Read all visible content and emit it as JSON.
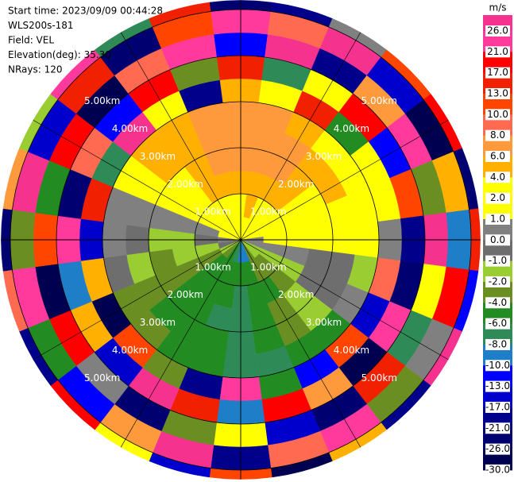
{
  "chart_data": {
    "type": "ppi",
    "header": [
      "Start time: 2023/09/09 00:44:28",
      "WLS200s-181",
      "Field: VEL",
      "Elevation(deg): 35.30",
      "NRays: 120"
    ],
    "rings": [
      {
        "value": 1,
        "label": "1.00km"
      },
      {
        "value": 2,
        "label": "2.00km"
      },
      {
        "value": 3,
        "label": "3.00km"
      },
      {
        "value": 4,
        "label": "4.00km"
      },
      {
        "value": 5,
        "label": "5.00km"
      }
    ],
    "ranges": [
      0,
      0.5,
      1,
      1.5,
      2,
      2.5,
      3,
      3.5,
      4,
      4.5,
      5,
      5.2
    ],
    "azimuths": [
      0,
      15,
      30,
      45,
      60,
      75,
      90,
      105,
      120,
      135,
      150,
      165,
      180,
      195,
      210,
      225,
      240,
      255,
      270,
      285,
      300,
      315,
      330,
      345
    ],
    "gates": [
      [
        1.5,
        3,
        5,
        6.5,
        7,
        7,
        5,
        15,
        -13,
        22,
        -26
      ],
      [
        1.5,
        4,
        5,
        6.5,
        7,
        7,
        3,
        -8,
        27,
        9,
        -21
      ],
      [
        1.5,
        3,
        5,
        6,
        7,
        5,
        13,
        2,
        -18,
        30,
        0.5
      ],
      [
        1.5,
        3,
        5,
        5,
        5,
        3,
        -5,
        20,
        7,
        -15,
        11
      ],
      [
        1.5,
        3,
        3,
        3,
        5,
        3,
        1.5,
        -11,
        24,
        -28,
        18
      ],
      [
        1.5,
        2,
        3,
        3,
        3,
        2.5,
        1.5,
        12,
        -3,
        5,
        -24
      ],
      [
        0.5,
        1.5,
        1.5,
        3,
        3,
        2,
        0.5,
        -19,
        28,
        -9,
        14
      ],
      [
        0.5,
        0.5,
        0.5,
        -0.5,
        -0.5,
        -1.5,
        9,
        -22,
        3,
        19,
        -12
      ],
      [
        -1.5,
        -1.5,
        -1.5,
        -0.5,
        -0.5,
        0.5,
        -16,
        25,
        -7,
        0.5,
        27
      ],
      [
        -1.5,
        -3,
        -3,
        -1.5,
        -1.5,
        -5,
        11,
        -27,
        16,
        -3,
        -18
      ],
      [
        -3,
        -3,
        -5,
        -3,
        -3,
        -5,
        -12,
        6,
        -25,
        21,
        4
      ],
      [
        -9,
        -5,
        -5,
        -5,
        -5,
        -7,
        -5,
        18,
        -14,
        8,
        -29
      ],
      [
        -9,
        -5,
        -7,
        -7,
        -7,
        -7,
        23,
        -10,
        2.5,
        -20,
        12
      ],
      [
        -7,
        -5,
        -5,
        -7,
        -5,
        -5,
        -20,
        14,
        -4,
        26,
        -15
      ],
      [
        -5,
        -5,
        -5,
        -5,
        -5,
        -5,
        -3,
        29,
        -23,
        7,
        3
      ],
      [
        -3,
        -5,
        -5,
        -5,
        -5,
        -3,
        10,
        -16,
        0.5,
        -11,
        20
      ],
      [
        -1.5,
        -3,
        -3,
        -3,
        -3,
        -3,
        -27,
        4,
        17,
        -6,
        -19
      ],
      [
        -0.5,
        -1.5,
        -1.5,
        -3,
        -1.5,
        -0.5,
        5,
        -9,
        -28,
        25,
        9
      ],
      [
        0.5,
        -0.5,
        -1.5,
        -1.5,
        -0.5,
        0.5,
        -14,
        21,
        12,
        -2.5,
        -23
      ],
      [
        1.5,
        0.5,
        0.5,
        0.5,
        0.5,
        0.5,
        16,
        -26,
        -5,
        28,
        6
      ],
      [
        1.5,
        3,
        3,
        3,
        3,
        3,
        -7,
        9,
        19,
        -17,
        -1.5
      ],
      [
        1.5,
        3,
        3,
        3,
        5,
        5,
        27,
        -12,
        -30,
        13,
        24
      ],
      [
        1.5,
        3,
        5,
        5,
        5,
        5,
        2.5,
        17,
        8,
        -22,
        -8
      ],
      [
        1.5,
        3,
        5,
        7,
        7,
        7,
        -18,
        -4,
        22,
        11,
        15
      ]
    ],
    "colorbar": {
      "title": "m/s",
      "ticks": [
        {
          "value": 26,
          "label": "26.0"
        },
        {
          "value": 21,
          "label": "21.0"
        },
        {
          "value": 17,
          "label": "17.0"
        },
        {
          "value": 13,
          "label": "13.0"
        },
        {
          "value": 10,
          "label": "10.0"
        },
        {
          "value": 8,
          "label": "8.0"
        },
        {
          "value": 6,
          "label": "6.0"
        },
        {
          "value": 4,
          "label": "4.0"
        },
        {
          "value": 2,
          "label": "2.0"
        },
        {
          "value": 1,
          "label": "1.0"
        },
        {
          "value": 0,
          "label": "0.0"
        },
        {
          "value": -1,
          "label": "-1.0"
        },
        {
          "value": -2,
          "label": "-2.0"
        },
        {
          "value": -4,
          "label": "-4.0"
        },
        {
          "value": -6,
          "label": "-6.0"
        },
        {
          "value": -8,
          "label": "-8.0"
        },
        {
          "value": -10,
          "label": "-10.0"
        },
        {
          "value": -13,
          "label": "-13.0"
        },
        {
          "value": -17,
          "label": "-17.0"
        },
        {
          "value": -21,
          "label": "-21.0"
        },
        {
          "value": -26,
          "label": "-26.0"
        },
        {
          "value": -30,
          "label": "-30.0"
        }
      ],
      "colors": [
        "#f5338f",
        "#ff3a9c",
        "#ff0000",
        "#f02000",
        "#ff4500",
        "#ff6a50",
        "#ff9a3c",
        "#ffb000",
        "#ffff00",
        "#ffff00",
        "#808080",
        "#6e6e6e",
        "#9acd32",
        "#6b8e23",
        "#228b22",
        "#2e8b57",
        "#1e7ec8",
        "#0000ff",
        "#0000cd",
        "#00008b",
        "#000070",
        "#000050"
      ]
    }
  }
}
